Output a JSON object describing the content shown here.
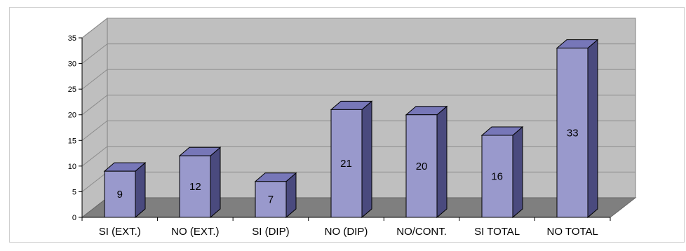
{
  "chart_data": {
    "type": "bar",
    "categories": [
      "SI (EXT.)",
      "NO (EXT.)",
      "SI (DIP)",
      "NO (DIP)",
      "NO/CONT.",
      "SI TOTAL",
      "NO TOTAL"
    ],
    "values": [
      9,
      12,
      7,
      21,
      20,
      16,
      33
    ],
    "title": "",
    "xlabel": "",
    "ylabel": "",
    "ylim": [
      0,
      35
    ],
    "yticks": [
      0,
      5,
      10,
      15,
      20,
      25,
      30,
      35
    ],
    "grid": true,
    "data_labels": true,
    "style": "3d-bar",
    "colors": {
      "bar_front": "#9999cc",
      "bar_side": "#4a4a7e",
      "bar_top": "#7777b8",
      "wall": "#bfbfbf",
      "floor": "#7f7f7f"
    }
  }
}
